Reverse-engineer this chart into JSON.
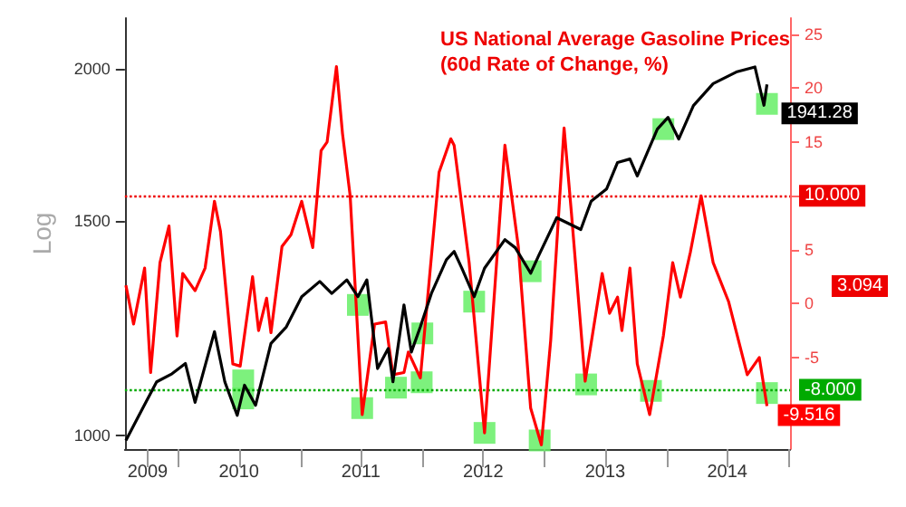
{
  "chart_data": {
    "type": "line",
    "title": "US National Average Gasoline Prices (60d Rate of Change, %)",
    "ylabel": "Log",
    "xlim": [
      "2009-07-25",
      "2015-01-05"
    ],
    "xticks": [
      {
        "value": "2009-10-01",
        "label": "2009"
      },
      {
        "value": "2010-01-01",
        "label": null
      },
      {
        "value": "2010-07-01",
        "label": "2010"
      },
      {
        "value": "2011-01-01",
        "label": null
      },
      {
        "value": "2011-07-01",
        "label": "2011"
      },
      {
        "value": "2012-01-01",
        "label": null
      },
      {
        "value": "2012-07-01",
        "label": "2012"
      },
      {
        "value": "2013-01-01",
        "label": null
      },
      {
        "value": "2013-07-01",
        "label": "2013"
      },
      {
        "value": "2014-01-01",
        "label": null
      },
      {
        "value": "2014-07-01",
        "label": "2014"
      },
      {
        "value": "2015-01-01",
        "label": null
      }
    ],
    "log": "y",
    "ylim": [
      975,
      2200
    ],
    "yticks": [
      1000,
      1500,
      2000
    ],
    "y2lim": [
      -13.5,
      26.5
    ],
    "y2ticks": [
      {
        "value": -10,
        "label": null
      },
      -5,
      0,
      5,
      {
        "value": 10,
        "label": null
      },
      15,
      20,
      25
    ],
    "grid": false,
    "legend": false,
    "annotations": [
      "3.094"
    ],
    "ref_lines": [
      {
        "axis": "y2",
        "value": 10,
        "label": "10.000",
        "color": "#ee0000",
        "line_style": "dotted"
      },
      {
        "axis": "y2",
        "value": -8,
        "label": "-8.000",
        "color": "#00aa00",
        "line_style": "dotted"
      }
    ],
    "series": [
      {
        "color": "#ff0000",
        "axis": "y2",
        "marker": "none",
        "x": [
          "2009-07-28",
          "2009-08-20",
          "2009-09-22",
          "2009-10-10",
          "2009-11-07",
          "2009-12-04",
          "2009-12-28",
          "2010-01-14",
          "2010-02-20",
          "2010-03-22",
          "2010-04-19",
          "2010-05-07",
          "2010-06-13",
          "2010-07-05",
          "2010-08-11",
          "2010-08-29",
          "2010-09-22",
          "2010-10-05",
          "2010-11-07",
          "2010-12-04",
          "2011-01-05",
          "2011-02-07",
          "2011-03-04",
          "2011-03-22",
          "2011-04-19",
          "2011-05-07",
          "2011-05-30",
          "2011-07-05",
          "2011-08-11",
          "2011-09-13",
          "2011-10-05",
          "2011-11-07",
          "2011-11-20",
          "2011-12-26",
          "2012-02-20",
          "2012-03-26",
          "2012-04-05",
          "2012-05-20",
          "2012-07-05",
          "2012-09-04",
          "2012-10-14",
          "2012-11-20",
          "2012-12-22",
          "2013-01-19",
          "2013-02-28",
          "2013-03-22",
          "2013-05-02",
          "2013-06-22",
          "2013-07-14",
          "2013-08-07",
          "2013-08-20",
          "2013-09-13",
          "2013-10-05",
          "2013-11-11",
          "2013-12-22",
          "2014-01-19",
          "2014-02-11",
          "2014-03-13",
          "2014-04-14",
          "2014-05-20",
          "2014-07-05",
          "2014-08-30",
          "2014-10-05",
          "2014-10-28"
        ],
        "values": [
          1.7,
          -1.9,
          3.3,
          -6.4,
          3.8,
          7.2,
          -3.0,
          2.8,
          1.2,
          3.3,
          9.5,
          6.7,
          -5.6,
          -5.8,
          2.5,
          -2.5,
          0.5,
          -2.7,
          5.3,
          6.4,
          9.5,
          5.2,
          14.2,
          15,
          22,
          15.8,
          10,
          -10.3,
          -1.9,
          -1.7,
          -6.6,
          -6.4,
          -4.5,
          -6.9,
          12.2,
          15.3,
          14.7,
          3.8,
          -12,
          14.7,
          5.3,
          -9.7,
          -13.1,
          -3.4,
          16.3,
          8.4,
          -7.2,
          2.8,
          -0.9,
          0.6,
          -2.5,
          3.3,
          -5.6,
          -10.3,
          -3,
          3.8,
          0.6,
          4.8,
          10,
          3.8,
          0.2,
          -6.6,
          -5,
          -9.516
        ],
        "value_labels": [
          null,
          null,
          null,
          null,
          null,
          null,
          null,
          null,
          null,
          null,
          null,
          null,
          null,
          null,
          null,
          null,
          null,
          null,
          null,
          null,
          null,
          null,
          null,
          null,
          null,
          null,
          null,
          null,
          null,
          null,
          null,
          null,
          null,
          null,
          null,
          null,
          null,
          null,
          null,
          null,
          null,
          null,
          null,
          null,
          null,
          null,
          null,
          null,
          null,
          null,
          null,
          null,
          null,
          null,
          null,
          null,
          null,
          null,
          null,
          null,
          null,
          null,
          null,
          "-9.516"
        ]
      },
      {
        "color": "#000000",
        "axis": "y",
        "marker": "none",
        "x": [
          "2009-07-28",
          "2009-09-13",
          "2009-10-28",
          "2009-12-13",
          "2010-01-22",
          "2010-02-20",
          "2010-04-19",
          "2010-05-20",
          "2010-06-26",
          "2010-07-18",
          "2010-08-20",
          "2010-10-05",
          "2010-11-20",
          "2011-01-05",
          "2011-02-28",
          "2011-04-05",
          "2011-05-20",
          "2011-06-22",
          "2011-07-19",
          "2011-08-20",
          "2011-09-21",
          "2011-10-05",
          "2011-11-07",
          "2011-11-29",
          "2011-12-26",
          "2012-01-28",
          "2012-03-13",
          "2012-04-05",
          "2012-04-28",
          "2012-06-04",
          "2012-07-05",
          "2012-09-04",
          "2012-10-05",
          "2012-11-20",
          "2012-12-13",
          "2013-02-06",
          "2013-04-19",
          "2013-05-20",
          "2013-07-05",
          "2013-08-07",
          "2013-09-13",
          "2013-10-05",
          "2013-12-04",
          "2014-01-05",
          "2014-02-06",
          "2014-03-22",
          "2014-05-20",
          "2014-07-28",
          "2014-09-22",
          "2014-10-19",
          "2014-10-28"
        ],
        "values": [
          991,
          1049,
          1107,
          1124,
          1146,
          1065,
          1217,
          1107,
          1039,
          1100,
          1059,
          1190,
          1228,
          1300,
          1338,
          1308,
          1342,
          1300,
          1342,
          1135,
          1179,
          1107,
          1280,
          1171,
          1228,
          1308,
          1394,
          1416,
          1372,
          1300,
          1372,
          1448,
          1426,
          1359,
          1403,
          1509,
          1476,
          1557,
          1593,
          1675,
          1686,
          1633,
          1784,
          1824,
          1751,
          1865,
          1944,
          1987,
          2006,
          1866,
          1941.28
        ],
        "value_labels": [
          null,
          null,
          null,
          null,
          null,
          null,
          null,
          null,
          null,
          null,
          null,
          null,
          null,
          null,
          null,
          null,
          null,
          null,
          null,
          null,
          null,
          null,
          null,
          null,
          null,
          null,
          null,
          null,
          null,
          null,
          null,
          null,
          null,
          null,
          null,
          null,
          null,
          null,
          null,
          null,
          null,
          null,
          null,
          null,
          null,
          null,
          null,
          null,
          null,
          null,
          "1941.28"
        ]
      },
      {
        "type": "scatter",
        "color": "#66ee66",
        "axis": "y2",
        "marker": "square",
        "x": [
          "2010-07-14",
          "2011-07-05",
          "2011-10-14",
          "2011-12-30",
          "2012-07-05",
          "2012-12-17",
          "2013-05-05",
          "2013-11-15",
          "2014-10-28"
        ],
        "values": [
          -8.8,
          -9.7,
          -7.8,
          -7.3,
          -12,
          -12.7,
          -7.5,
          -8.1,
          -8.3
        ]
      },
      {
        "type": "scatter",
        "color": "#66ee66",
        "axis": "y",
        "marker": "square",
        "x": [
          "2010-07-14",
          "2011-06-22",
          "2012-01-01",
          "2012-06-04",
          "2012-11-20",
          "2013-12-22",
          "2014-10-28"
        ],
        "values": [
          1110,
          1280,
          1213,
          1288,
          1364,
          1784,
          1871
        ]
      }
    ]
  }
}
